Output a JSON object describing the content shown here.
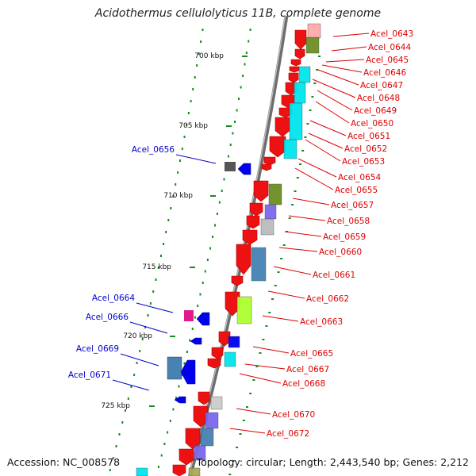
{
  "title": "Acidothermus cellulolyticus 11B, complete genome",
  "footer": {
    "accession": "Accession: NC_008578",
    "topology": "Topology: circular; Length: 2,443,540 bp; Genes: 2,212"
  },
  "colors": {
    "forward_label": "#dd0000",
    "reverse_label": "#0000cc",
    "forward_gene": "#ee1111",
    "reverse_gene": "#0000ee",
    "backbone": "#808080",
    "ticks": "#1a8a1a"
  },
  "scale_labels": [
    "700 kbp",
    "705 kbp",
    "710 kbp",
    "715 kbp",
    "720 kbp",
    "725 kbp"
  ],
  "forward_genes": [
    "Acel_0643",
    "Acel_0644",
    "Acel_0645",
    "Acel_0646",
    "Acel_0647",
    "Acel_0648",
    "Acel_0649",
    "Acel_0650",
    "Acel_0651",
    "Acel_0652",
    "Acel_0653",
    "Acel_0654",
    "Acel_0655",
    "Acel_0657",
    "Acel_0658",
    "Acel_0659",
    "Acel_0660",
    "Acel_0661",
    "Acel_0662",
    "Acel_0663",
    "Acel_0665",
    "Acel_0667",
    "Acel_0668",
    "Acel_0670",
    "Acel_0672"
  ],
  "reverse_genes": [
    "Acel_0656",
    "Acel_0664",
    "Acel_0666",
    "Acel_0669",
    "Acel_0671"
  ]
}
